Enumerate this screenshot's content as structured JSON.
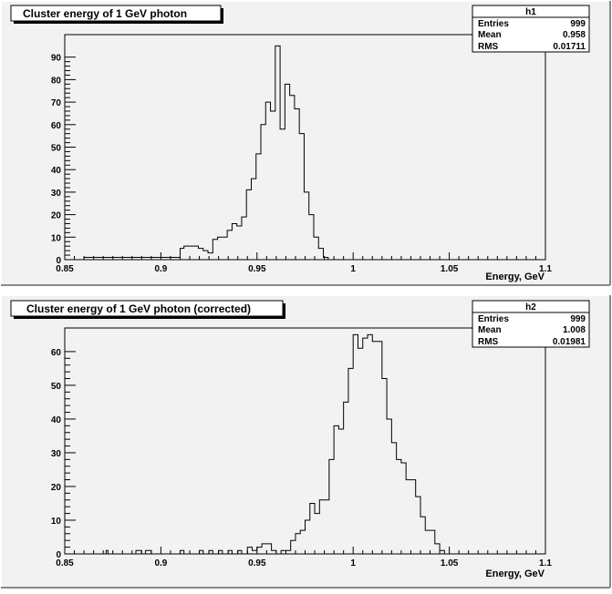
{
  "chart_data": [
    {
      "type": "bar",
      "title": "Cluster energy of 1 GeV photon",
      "xlabel": "Energy, GeV",
      "ylabel": "",
      "xlim": [
        0.85,
        1.1
      ],
      "ylim": [
        0,
        100
      ],
      "x_ticks": [
        0.85,
        0.9,
        0.95,
        1,
        1.05,
        1.1
      ],
      "x_tick_labels": [
        "0.85",
        "0.9",
        "0.95",
        "1",
        "1.05",
        "1.1"
      ],
      "y_ticks": [
        0,
        10,
        20,
        30,
        40,
        50,
        60,
        70,
        80,
        90
      ],
      "y_tick_labels": [
        "0",
        "10",
        "20",
        "30",
        "40",
        "50",
        "60",
        "70",
        "80",
        "90"
      ],
      "stats": {
        "name": "h1",
        "rows": [
          {
            "label": "Entries",
            "value": "999"
          },
          {
            "label": "Mean",
            "value": "0.958"
          },
          {
            "label": "RMS",
            "value": "0.01711"
          }
        ]
      },
      "bins": {
        "edges": [
          0.86,
          0.91,
          0.912,
          0.9145,
          0.917,
          0.9195,
          0.922,
          0.9245,
          0.927,
          0.9295,
          0.932,
          0.9345,
          0.937,
          0.9395,
          0.942,
          0.9445,
          0.947,
          0.9495,
          0.952,
          0.9545,
          0.957,
          0.9595,
          0.962,
          0.9645,
          0.967,
          0.9695,
          0.972,
          0.9745,
          0.977,
          0.9795,
          0.982,
          0.9845,
          0.987,
          0.9895
        ],
        "values": [
          1,
          5,
          6,
          6,
          6,
          5,
          4,
          3,
          9,
          10,
          10,
          13,
          16,
          15,
          19,
          31,
          36,
          47,
          60,
          70,
          66,
          95,
          58,
          78,
          73,
          67,
          56,
          30,
          20,
          10,
          5,
          1,
          0
        ]
      }
    },
    {
      "type": "bar",
      "title": "Cluster energy of 1 GeV photon (corrected)",
      "xlabel": "Energy, GeV",
      "ylabel": "",
      "xlim": [
        0.85,
        1.1
      ],
      "ylim": [
        0,
        67
      ],
      "x_ticks": [
        0.85,
        0.9,
        0.95,
        1,
        1.05,
        1.1
      ],
      "x_tick_labels": [
        "0.85",
        "0.9",
        "0.95",
        "1",
        "1.05",
        "1.1"
      ],
      "y_ticks": [
        0,
        10,
        20,
        30,
        40,
        50,
        60
      ],
      "y_tick_labels": [
        "0",
        "10",
        "20",
        "30",
        "40",
        "50",
        "60"
      ],
      "stats": {
        "name": "h2",
        "rows": [
          {
            "label": "Entries",
            "value": "999"
          },
          {
            "label": "Mean",
            "value": "1.008"
          },
          {
            "label": "RMS",
            "value": "0.01981"
          }
        ]
      },
      "bins": {
        "edges": [
          0.85,
          0.8715,
          0.8725,
          0.88,
          0.887,
          0.89,
          0.892,
          0.895,
          0.897,
          0.91,
          0.912,
          0.92,
          0.922,
          0.925,
          0.927,
          0.93,
          0.932,
          0.935,
          0.937,
          0.94,
          0.942,
          0.945,
          0.9475,
          0.95,
          0.9525,
          0.955,
          0.9575,
          0.96,
          0.9625,
          0.965,
          0.9675,
          0.97,
          0.9725,
          0.975,
          0.9775,
          0.98,
          0.9825,
          0.985,
          0.9875,
          0.99,
          0.9925,
          0.995,
          0.9975,
          1.0,
          1.0025,
          1.005,
          1.0075,
          1.01,
          1.0125,
          1.015,
          1.0175,
          1.02,
          1.0225,
          1.025,
          1.0275,
          1.03,
          1.0325,
          1.035,
          1.0375,
          1.04,
          1.0425,
          1.045,
          1.0475,
          1.05,
          1.0525
        ],
        "values": [
          0,
          1,
          0,
          0,
          1,
          0,
          1,
          0,
          0,
          1,
          0,
          1,
          0,
          1,
          0,
          1,
          0,
          1,
          0,
          1,
          0,
          2,
          1,
          2,
          3,
          3,
          1,
          0,
          1,
          1,
          4,
          6,
          7,
          10,
          15,
          12,
          16,
          16,
          28,
          38,
          37,
          45,
          55,
          65,
          61,
          64,
          65,
          63,
          63,
          52,
          40,
          33,
          28,
          27,
          22,
          22,
          17,
          11,
          7,
          7,
          3,
          1,
          0,
          0
        ]
      }
    }
  ]
}
